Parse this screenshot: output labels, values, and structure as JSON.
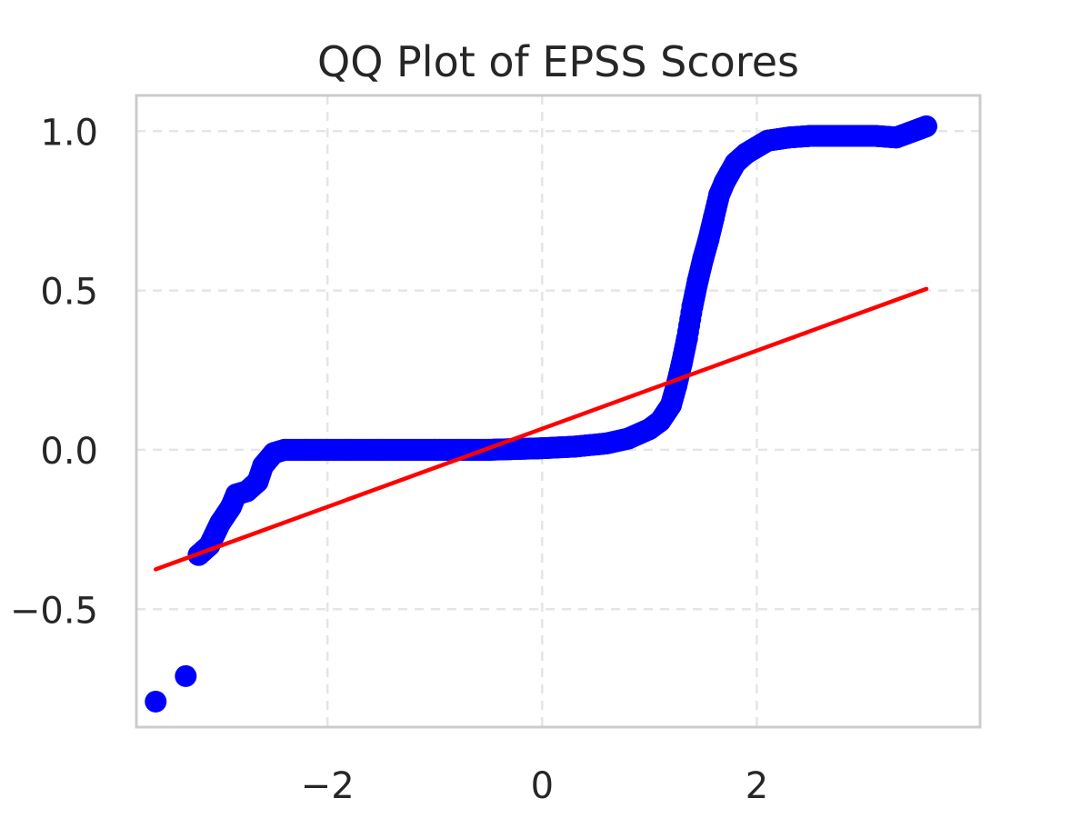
{
  "chart_data": {
    "type": "scatter",
    "title": "QQ Plot of EPSS Scores",
    "xlabel": "",
    "ylabel": "",
    "xlim": [
      -3.78,
      4.08
    ],
    "ylim": [
      -0.87,
      1.112
    ],
    "xticks": [
      {
        "value": -2,
        "label": "−2"
      },
      {
        "value": 0,
        "label": "0"
      },
      {
        "value": 2,
        "label": "2"
      }
    ],
    "yticks": [
      {
        "value": -0.5,
        "label": "−0.5"
      },
      {
        "value": 0.0,
        "label": "0.0"
      },
      {
        "value": 0.5,
        "label": "0.5"
      },
      {
        "value": 1.0,
        "label": "1.0"
      }
    ],
    "grid": true,
    "legend": "none",
    "series": [
      {
        "role": "ordered-values",
        "color": "#0000ff",
        "x": [
          -3.6,
          -3.32,
          -3.2,
          -3.1,
          -3.0,
          -2.9,
          -2.85,
          -2.75,
          -2.65,
          -2.6,
          -2.5,
          -2.4,
          -2.2,
          -2.0,
          -1.5,
          -1.0,
          -0.5,
          0.0,
          0.3,
          0.6,
          0.8,
          1.0,
          1.1,
          1.2,
          1.25,
          1.3,
          1.35,
          1.4,
          1.45,
          1.5,
          1.55,
          1.6,
          1.65,
          1.7,
          1.75,
          1.8,
          1.9,
          2.0,
          2.1,
          2.3,
          2.5,
          2.8,
          3.1,
          3.3,
          3.58
        ],
        "y": [
          -0.79,
          -0.71,
          -0.33,
          -0.3,
          -0.23,
          -0.18,
          -0.14,
          -0.13,
          -0.1,
          -0.05,
          -0.01,
          0.0,
          0.0,
          0.0,
          0.0,
          0.0,
          0.0,
          0.005,
          0.01,
          0.02,
          0.035,
          0.065,
          0.09,
          0.14,
          0.2,
          0.27,
          0.35,
          0.45,
          0.53,
          0.6,
          0.66,
          0.73,
          0.8,
          0.84,
          0.87,
          0.9,
          0.93,
          0.95,
          0.97,
          0.98,
          0.985,
          0.985,
          0.985,
          0.98,
          1.015
        ]
      }
    ],
    "fit_line": {
      "color": "#ff0000",
      "x": [
        -3.6,
        3.58
      ],
      "y": [
        -0.375,
        0.505
      ]
    }
  }
}
